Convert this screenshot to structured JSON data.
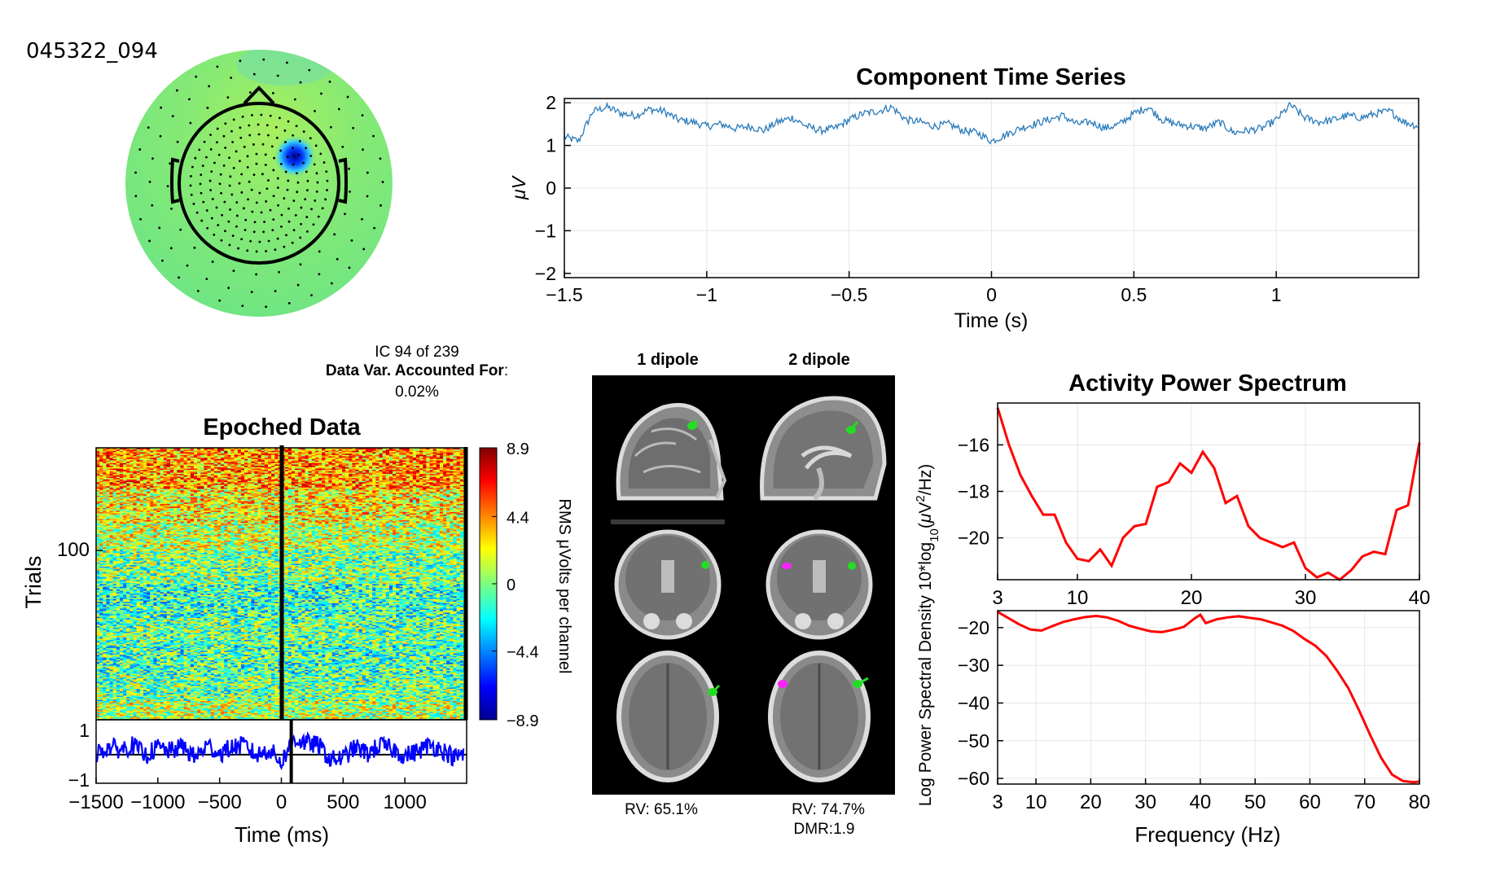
{
  "figure": {
    "component_id": "045322_094",
    "ic_label": "IC 94 of 239",
    "var_label": "Data Var. Accounted For",
    "var_colon": ":",
    "var_value": "0.02%"
  },
  "dipole": {
    "title_1": "1 dipole",
    "title_2": "2 dipole",
    "rv_1": "RV: 65.1%",
    "rv_2": "RV: 74.7%",
    "dmr_2": "DMR:1.9",
    "marker_colors": {
      "dipole_a": "#22dd22",
      "dipole_b": "#ff22ff"
    }
  },
  "colors": {
    "time_series_line": "#2b7bba",
    "erp_line": "#0000ff",
    "spectrum_line": "#ff0000",
    "grid": "#e6e6e6",
    "topo_base": "#7ee87a",
    "topo_hotspot": "#0000cc"
  },
  "chart_data": [
    {
      "id": "topomap",
      "type": "heatmap",
      "title": "",
      "description_values": {
        "hotspot_sign": "negative",
        "field_mean": "near zero"
      }
    },
    {
      "id": "time_series",
      "type": "line",
      "title": "Component Time Series",
      "xlabel": "Time (s)",
      "ylabel": "μV",
      "xlim": [
        -1.5,
        1.5
      ],
      "ylim": [
        -2.1,
        2.1
      ],
      "xticks": [
        -1.5,
        -1,
        -0.5,
        0,
        0.5,
        1
      ],
      "xtick_labels": [
        "−1.5",
        "−1",
        "−0.5",
        "0",
        "0.5",
        "1"
      ],
      "yticks": [
        2,
        1,
        0,
        -1,
        -2
      ],
      "ytick_labels": [
        "2",
        "1",
        "0",
        "−1",
        "−2"
      ],
      "grid": true,
      "x": [
        -1.5,
        -1.45,
        -1.4,
        -1.35,
        -1.3,
        -1.25,
        -1.2,
        -1.15,
        -1.1,
        -1.05,
        -1.0,
        -0.95,
        -0.9,
        -0.85,
        -0.8,
        -0.75,
        -0.7,
        -0.65,
        -0.6,
        -0.55,
        -0.5,
        -0.45,
        -0.4,
        -0.35,
        -0.3,
        -0.25,
        -0.2,
        -0.15,
        -0.1,
        -0.05,
        0.0,
        0.05,
        0.1,
        0.15,
        0.2,
        0.25,
        0.3,
        0.35,
        0.4,
        0.45,
        0.5,
        0.55,
        0.6,
        0.65,
        0.7,
        0.75,
        0.8,
        0.85,
        0.9,
        0.95,
        1.0,
        1.05,
        1.1,
        1.15,
        1.2,
        1.25,
        1.3,
        1.35,
        1.4,
        1.45,
        1.5
      ],
      "y": [
        1.2,
        1.1,
        1.8,
        1.9,
        1.75,
        1.7,
        1.85,
        1.8,
        1.6,
        1.55,
        1.45,
        1.5,
        1.4,
        1.45,
        1.35,
        1.55,
        1.65,
        1.45,
        1.35,
        1.4,
        1.6,
        1.75,
        1.8,
        1.9,
        1.6,
        1.55,
        1.45,
        1.5,
        1.35,
        1.3,
        1.1,
        1.25,
        1.4,
        1.5,
        1.6,
        1.7,
        1.5,
        1.55,
        1.4,
        1.5,
        1.75,
        1.9,
        1.6,
        1.5,
        1.45,
        1.4,
        1.55,
        1.3,
        1.35,
        1.4,
        1.6,
        1.95,
        1.65,
        1.55,
        1.6,
        1.7,
        1.65,
        1.75,
        1.8,
        1.55,
        1.45
      ]
    },
    {
      "id": "erpimage",
      "type": "heatmap",
      "title": "Epoched Data",
      "ylabel": "Trials",
      "ytick_labels": [
        "100"
      ],
      "colorbar_label": "RMS μVolts per channel",
      "colorbar_ticks": [
        8.9,
        4.4,
        0,
        -4.4,
        -8.9
      ],
      "colorbar_tick_labels": [
        "8.9",
        "4.4",
        "0",
        "−4.4",
        "−8.9"
      ],
      "clim": [
        -8.9,
        8.9
      ],
      "n_trials": 200,
      "band_means": [
        {
          "from_trial": 0,
          "to_trial": 14,
          "mean": 1.0
        },
        {
          "from_trial": 14,
          "to_trial": 33,
          "mean": -0.4
        },
        {
          "from_trial": 33,
          "to_trial": 55,
          "mean": -1.0
        },
        {
          "from_trial": 55,
          "to_trial": 75,
          "mean": -0.5
        },
        {
          "from_trial": 75,
          "to_trial": 100,
          "mean": -1.3
        },
        {
          "from_trial": 100,
          "to_trial": 125,
          "mean": -0.1
        },
        {
          "from_trial": 125,
          "to_trial": 145,
          "mean": 1.2
        },
        {
          "from_trial": 145,
          "to_trial": 170,
          "mean": 2.3
        },
        {
          "from_trial": 170,
          "to_trial": 200,
          "mean": 4.0
        }
      ]
    },
    {
      "id": "erp",
      "type": "line",
      "xlabel": "Time (ms)",
      "xlim": [
        -1500,
        1500
      ],
      "ylim": [
        -1,
        1
      ],
      "xticks": [
        -1500,
        -1000,
        -500,
        0,
        500,
        1000
      ],
      "xtick_labels": [
        "−1500",
        "−1000",
        "−500",
        "0",
        "500",
        "1000"
      ],
      "yticks": [
        1,
        -1
      ],
      "ytick_labels": [
        "1",
        "−1"
      ],
      "event_time_ms": 80,
      "x": [
        -1500,
        -1400,
        -1300,
        -1200,
        -1100,
        -1000,
        -900,
        -800,
        -700,
        -600,
        -500,
        -400,
        -300,
        -200,
        -100,
        0,
        100,
        200,
        300,
        400,
        500,
        600,
        700,
        800,
        900,
        1000,
        1100,
        1200,
        1300,
        1400,
        1480
      ],
      "y": [
        -0.1,
        0.2,
        0.1,
        0.3,
        -0.2,
        0.2,
        0.0,
        0.25,
        -0.3,
        0.3,
        -0.1,
        0.2,
        0.3,
        -0.2,
        0.1,
        -0.5,
        0.6,
        0.4,
        0.3,
        -0.4,
        -0.3,
        0.2,
        -0.1,
        0.3,
        0.1,
        -0.2,
        0.0,
        0.3,
        0.1,
        -0.3,
        -0.1
      ]
    },
    {
      "id": "spectrum_top",
      "type": "line",
      "title": "Activity Power Spectrum",
      "xlim": [
        3,
        40
      ],
      "ylim": [
        -21.8,
        -14.2
      ],
      "xticks": [
        3,
        10,
        20,
        30,
        40
      ],
      "xtick_labels": [
        "3",
        "10",
        "20",
        "30",
        "40"
      ],
      "yticks": [
        -16,
        -18,
        -20
      ],
      "ytick_labels": [
        "−16",
        "−18",
        "−20"
      ],
      "grid": true,
      "x": [
        3,
        4,
        5,
        6,
        7,
        8,
        9,
        10,
        11,
        12,
        13,
        14,
        15,
        16,
        17,
        18,
        19,
        20,
        21,
        22,
        23,
        24,
        25,
        26,
        27,
        28,
        29,
        30,
        31,
        32,
        33,
        34,
        35,
        36,
        37,
        38,
        39,
        40
      ],
      "y": [
        -14.4,
        -16.0,
        -17.3,
        -18.2,
        -19.0,
        -19.0,
        -20.2,
        -20.9,
        -21.0,
        -20.5,
        -21.2,
        -20.0,
        -19.5,
        -19.4,
        -17.8,
        -17.6,
        -16.8,
        -17.2,
        -16.3,
        -17.0,
        -18.5,
        -18.2,
        -19.5,
        -20.0,
        -20.2,
        -20.4,
        -20.2,
        -21.3,
        -21.7,
        -21.5,
        -21.8,
        -21.4,
        -20.8,
        -20.6,
        -20.7,
        -18.8,
        -18.6,
        -15.9
      ]
    },
    {
      "id": "spectrum_bottom",
      "type": "line",
      "xlabel": "Frequency (Hz)",
      "ylabel": "Log Power Spectral Density 10*log10(μV2/Hz)",
      "xlim": [
        3,
        80
      ],
      "ylim": [
        -61.5,
        -15.5
      ],
      "xticks": [
        3,
        10,
        20,
        30,
        40,
        50,
        60,
        70,
        80
      ],
      "xtick_labels": [
        "3",
        "10",
        "20",
        "30",
        "40",
        "50",
        "60",
        "70",
        "80"
      ],
      "yticks": [
        -20,
        -30,
        -40,
        -50,
        -60
      ],
      "ytick_labels": [
        "−20",
        "−30",
        "−40",
        "−50",
        "−60"
      ],
      "grid": true,
      "x": [
        3,
        5,
        7,
        9,
        11,
        13,
        15,
        17,
        19,
        21,
        23,
        25,
        27,
        29,
        31,
        33,
        35,
        37,
        39,
        40,
        41,
        43,
        45,
        47,
        49,
        51,
        53,
        55,
        57,
        59,
        61,
        63,
        65,
        67,
        69,
        71,
        73,
        75,
        77,
        79,
        80
      ],
      "y": [
        -15.8,
        -17.5,
        -19.2,
        -20.5,
        -20.8,
        -19.6,
        -18.5,
        -17.8,
        -17.2,
        -16.9,
        -17.3,
        -18.2,
        -19.5,
        -20.3,
        -21.0,
        -21.2,
        -20.6,
        -19.8,
        -17.5,
        -16.6,
        -18.8,
        -17.8,
        -17.3,
        -17.0,
        -17.4,
        -17.8,
        -18.6,
        -19.5,
        -20.9,
        -23.0,
        -24.8,
        -27.5,
        -31.5,
        -36.0,
        -42.0,
        -48.5,
        -54.5,
        -59.0,
        -60.7,
        -61.0,
        -60.8
      ]
    }
  ]
}
